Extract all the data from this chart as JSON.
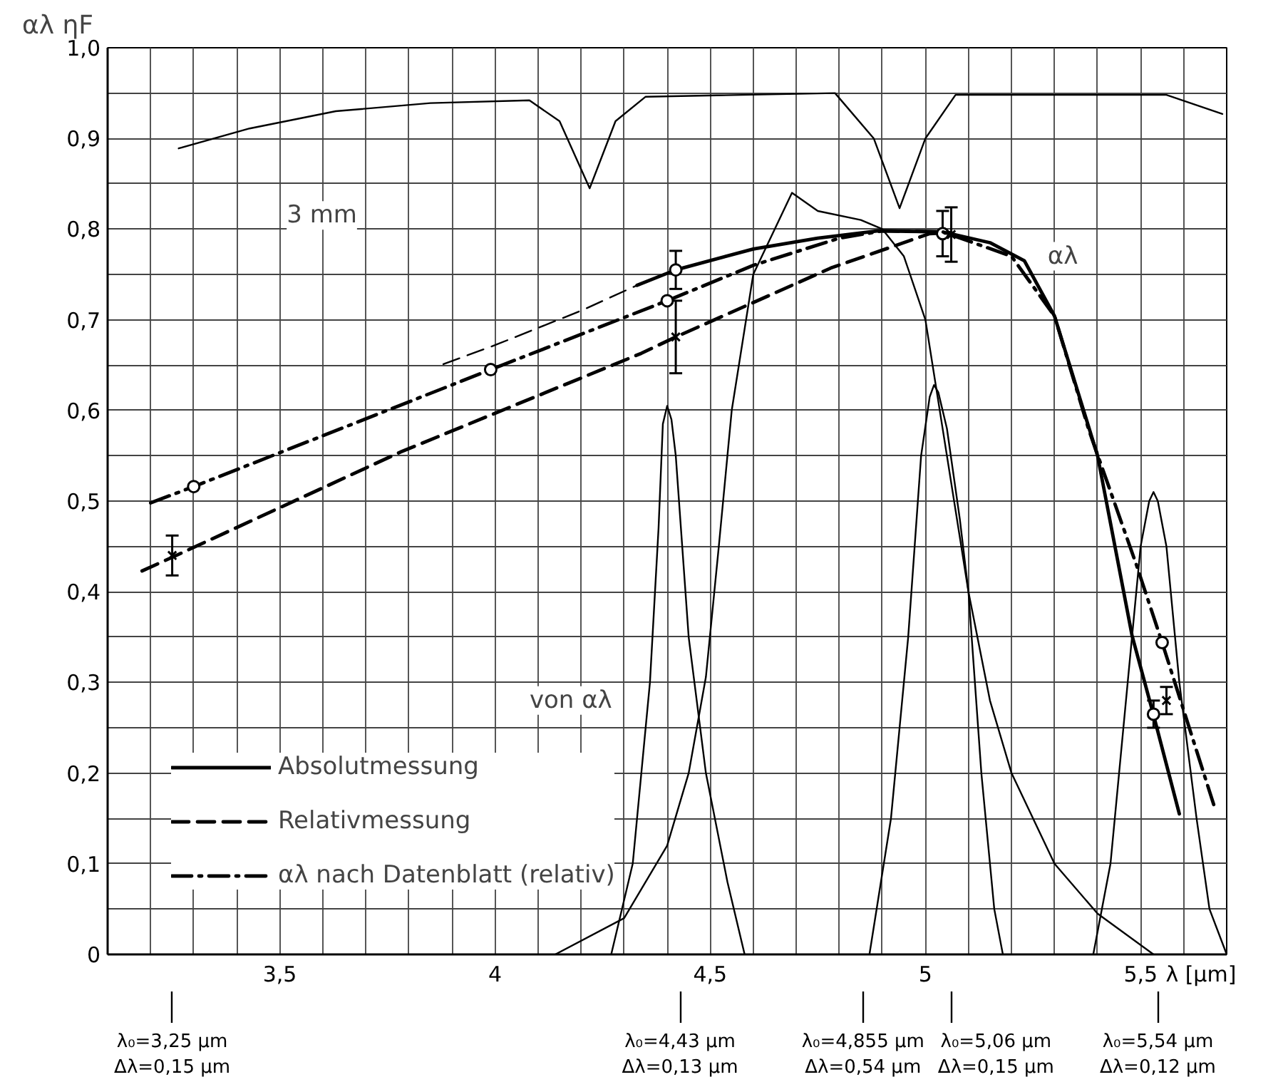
{
  "chart_data": {
    "type": "line",
    "ylabel": "αλ ηF",
    "xlabel": "λ [µm]",
    "xlim": [
      3.1,
      5.7
    ],
    "ylim": [
      0,
      1.0
    ],
    "xticks": [
      {
        "value": 3.1,
        "label": null
      },
      {
        "value": 3.2,
        "label": null
      },
      {
        "value": 3.3,
        "label": null
      },
      {
        "value": 3.4,
        "label": null
      },
      {
        "value": 3.5,
        "label": "3,5"
      },
      {
        "value": 3.6,
        "label": null
      },
      {
        "value": 3.7,
        "label": null
      },
      {
        "value": 3.8,
        "label": null
      },
      {
        "value": 3.9,
        "label": null
      },
      {
        "value": 4,
        "label": "4"
      },
      {
        "value": 4.1,
        "label": null
      },
      {
        "value": 4.2,
        "label": null
      },
      {
        "value": 4.3,
        "label": null
      },
      {
        "value": 4.4,
        "label": null
      },
      {
        "value": 4.5,
        "label": "4,5"
      },
      {
        "value": 4.6,
        "label": null
      },
      {
        "value": 4.7,
        "label": null
      },
      {
        "value": 4.8,
        "label": null
      },
      {
        "value": 4.9,
        "label": null
      },
      {
        "value": 5,
        "label": "5"
      },
      {
        "value": 5.1,
        "label": null
      },
      {
        "value": 5.2,
        "label": null
      },
      {
        "value": 5.3,
        "label": null
      },
      {
        "value": 5.4,
        "label": null
      },
      {
        "value": 5.5,
        "label": "5,5"
      },
      {
        "value": 5.6,
        "label": null
      },
      {
        "value": 5.7,
        "label": null
      }
    ],
    "yticks": [
      0,
      {
        "value": 0.05,
        "label": null
      },
      {
        "value": 0.1,
        "label": "0,1"
      },
      {
        "value": 0.15,
        "label": null
      },
      {
        "value": 0.2,
        "label": "0,2"
      },
      {
        "value": 0.25,
        "label": null
      },
      {
        "value": 0.3,
        "label": "0,3"
      },
      {
        "value": 0.35,
        "label": null
      },
      {
        "value": 0.4,
        "label": "0,4"
      },
      {
        "value": 0.45,
        "label": null
      },
      {
        "value": 0.5,
        "label": "0,5"
      },
      {
        "value": 0.55,
        "label": null
      },
      {
        "value": 0.6,
        "label": "0,6"
      },
      {
        "value": 0.65,
        "label": null
      },
      {
        "value": 0.7,
        "label": "0,7"
      },
      {
        "value": 0.75,
        "label": null
      },
      {
        "value": 0.8,
        "label": "0,8"
      },
      {
        "value": 0.85,
        "label": null
      },
      {
        "value": 0.9,
        "label": "0,9"
      },
      {
        "value": 0.95,
        "label": null
      },
      {
        "value": 1.0,
        "label": "1,0"
      }
    ],
    "grid": true,
    "legend": "bottom left",
    "series": [
      {
        "color": "#000000",
        "x": [
          3.265,
          3.43,
          3.63,
          3.85,
          4.08,
          4.15,
          4.22,
          4.28,
          4.35,
          4.79,
          4.88,
          4.94,
          5.0,
          5.07,
          5.56,
          5.69
        ],
        "values": [
          0.889,
          0.911,
          0.93,
          0.939,
          0.942,
          0.919,
          0.845,
          0.919,
          0.946,
          0.95,
          0.9,
          0.823,
          0.9,
          0.948,
          0.948,
          0.927
        ]
      },
      {
        "color": "#000000",
        "line_style": "dashed",
        "x": [
          3.88,
          4.0,
          4.2,
          4.33
        ],
        "values": [
          0.651,
          0.672,
          0.71,
          0.738
        ]
      },
      {
        "name": "Absolutmessung",
        "color": "#000000",
        "line_style": "solid",
        "x": [
          4.33,
          4.42,
          4.6,
          4.75,
          4.89,
          5.04,
          5.15,
          5.23,
          5.3,
          5.4,
          5.48,
          5.53,
          5.59
        ],
        "values": [
          0.738,
          0.755,
          0.778,
          0.79,
          0.798,
          0.797,
          0.785,
          0.765,
          0.704,
          0.55,
          0.352,
          0.264,
          0.155
        ]
      },
      {
        "type": "scatter",
        "color": "#000000",
        "marker": "circle",
        "x": [
          4.42,
          5.04,
          5.53
        ],
        "values": [
          0.755,
          0.795,
          0.265
        ],
        "errors": [
          0.021,
          0.025,
          0.015
        ]
      },
      {
        "name": "Relativmessung",
        "color": "#000000",
        "line_style": "dashed",
        "x": [
          3.18,
          3.25,
          3.78,
          4.34,
          4.42,
          4.78,
          5.01,
          5.06
        ],
        "values": [
          0.423,
          0.438,
          0.554,
          0.663,
          0.681,
          0.757,
          0.795,
          0.796
        ]
      },
      {
        "type": "scatter",
        "color": "#000000",
        "marker": "cross",
        "x": [
          3.25,
          4.42,
          5.06,
          5.56
        ],
        "values": [
          0.44,
          0.681,
          0.794,
          0.28
        ],
        "errors": [
          0.022,
          0.04,
          0.03,
          0.015
        ]
      },
      {
        "name": "αλ nach Datenblatt (relativ)",
        "color": "#000000",
        "line_style": "dashdot",
        "x": [
          3.2,
          3.3,
          3.99,
          4.4,
          4.6,
          4.8,
          4.9,
          5.04,
          5.2,
          5.3,
          5.38,
          5.49,
          5.55,
          5.67
        ],
        "values": [
          0.498,
          0.516,
          0.645,
          0.721,
          0.76,
          0.79,
          0.798,
          0.797,
          0.77,
          0.704,
          0.578,
          0.43,
          0.344,
          0.165
        ]
      },
      {
        "type": "scatter",
        "color": "#000000",
        "marker": "circle",
        "x": [
          3.3,
          3.99,
          4.4,
          5.55
        ],
        "values": [
          0.516,
          0.645,
          0.721,
          0.344
        ]
      },
      {
        "color": "#000000",
        "x": [
          4.27,
          4.32,
          4.36,
          4.38,
          4.39,
          4.4,
          4.41,
          4.42,
          4.45,
          4.49,
          4.54,
          4.58
        ],
        "values": [
          0,
          0.1,
          0.3,
          0.47,
          0.585,
          0.605,
          0.59,
          0.55,
          0.35,
          0.2,
          0.08,
          0
        ]
      },
      {
        "color": "#000000",
        "x": [
          4.14,
          4.3,
          4.4,
          4.45,
          4.49,
          4.52,
          4.55,
          4.6,
          4.69,
          4.75,
          4.85,
          4.9,
          4.95,
          5.0,
          5.05,
          5.1,
          5.15,
          5.2,
          5.3,
          5.4,
          5.53
        ],
        "values": [
          0,
          0.04,
          0.12,
          0.2,
          0.306,
          0.45,
          0.6,
          0.75,
          0.84,
          0.82,
          0.81,
          0.8,
          0.77,
          0.7,
          0.55,
          0.4,
          0.28,
          0.2,
          0.1,
          0.045,
          0
        ]
      },
      {
        "color": "#000000",
        "x": [
          4.87,
          4.92,
          4.96,
          4.99,
          5.01,
          5.02,
          5.03,
          5.05,
          5.08,
          5.1,
          5.13,
          5.16,
          5.18
        ],
        "values": [
          0,
          0.15,
          0.35,
          0.55,
          0.615,
          0.628,
          0.62,
          0.58,
          0.48,
          0.4,
          0.2,
          0.05,
          0
        ]
      },
      {
        "color": "#000000",
        "x": [
          5.39,
          5.43,
          5.47,
          5.5,
          5.52,
          5.53,
          5.54,
          5.56,
          5.59,
          5.63,
          5.66,
          5.7
        ],
        "values": [
          0,
          0.1,
          0.3,
          0.45,
          0.5,
          0.51,
          0.5,
          0.45,
          0.3,
          0.15,
          0.05,
          0
        ]
      }
    ],
    "annotations": [
      "von αλ",
      "3 mm",
      "αλ",
      "λ₀=3,25 µm\nΔλ=0,15 µm",
      "λ₀=4,43 µm\nΔλ=0,13 µm",
      "λ₀=4,855 µm\nΔλ=0,54 µm",
      "λ₀=5,06 µm\nΔλ=0,15 µm",
      "λ₀=5,54 µm\nΔλ=0,12 µm"
    ]
  }
}
